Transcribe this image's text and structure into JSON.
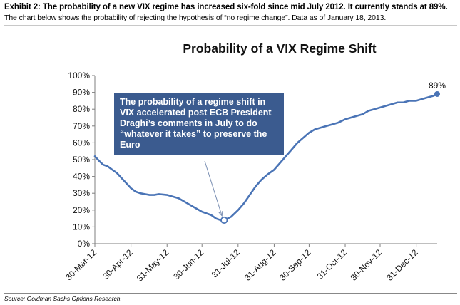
{
  "header": {
    "exhibit_title": "Exhibit 2: The probability of a new VIX regime has increased six-fold since mid July 2012. It currently stands at 89%.",
    "exhibit_subtitle": "The chart below shows the probability of rejecting the hypothesis of “no regime change”. Data as of January 18, 2013."
  },
  "footer": {
    "source": "Source: Goldman Sachs Options Research."
  },
  "annotation": {
    "text": "The probability of a regime shift in VIX accelerated post ECB President Draghi’s comments in July to do “whatever it takes” to preserve the Euro"
  },
  "colors": {
    "line": "#4a74b6",
    "annotation_bg": "#3b5b8f",
    "axis": "#7f7f7f"
  },
  "chart_data": {
    "type": "line",
    "title": "Probability of a VIX Regime Shift",
    "xlabel": "",
    "ylabel": "",
    "ylim": [
      0,
      100
    ],
    "y_ticks": [
      "0%",
      "10%",
      "20%",
      "30%",
      "40%",
      "50%",
      "60%",
      "70%",
      "80%",
      "90%",
      "100%"
    ],
    "x_tick_labels": [
      "30-Mar-12",
      "30-Apr-12",
      "31-May-12",
      "30-Jun-12",
      "31-Jul-12",
      "31-Aug-12",
      "30-Sep-12",
      "31-Oct-12",
      "30-Nov-12",
      "31-Dec-12"
    ],
    "x_range": [
      "2012-03-30",
      "2013-01-18"
    ],
    "grid": false,
    "legend": "none",
    "end_label": "89%",
    "series": [
      {
        "x": [
          "2012-03-30",
          "2012-04-03",
          "2012-04-06",
          "2012-04-10",
          "2012-04-14",
          "2012-04-18",
          "2012-04-22",
          "2012-04-26",
          "2012-04-30",
          "2012-05-04",
          "2012-05-08",
          "2012-05-12",
          "2012-05-16",
          "2012-05-20",
          "2012-05-24",
          "2012-05-31",
          "2012-06-05",
          "2012-06-10",
          "2012-06-15",
          "2012-06-20",
          "2012-06-25",
          "2012-06-30",
          "2012-07-04",
          "2012-07-08",
          "2012-07-12",
          "2012-07-16",
          "2012-07-19",
          "2012-07-22",
          "2012-07-25",
          "2012-07-31",
          "2012-08-05",
          "2012-08-10",
          "2012-08-15",
          "2012-08-20",
          "2012-08-25",
          "2012-08-31",
          "2012-09-05",
          "2012-09-10",
          "2012-09-15",
          "2012-09-20",
          "2012-09-25",
          "2012-09-30",
          "2012-10-05",
          "2012-10-10",
          "2012-10-15",
          "2012-10-20",
          "2012-10-25",
          "2012-10-31",
          "2012-11-05",
          "2012-11-10",
          "2012-11-15",
          "2012-11-20",
          "2012-11-25",
          "2012-11-30",
          "2012-12-05",
          "2012-12-10",
          "2012-12-15",
          "2012-12-20",
          "2012-12-25",
          "2012-12-31",
          "2013-01-05",
          "2013-01-10",
          "2013-01-15",
          "2013-01-18"
        ],
        "values": [
          52,
          49,
          47,
          46,
          44,
          42,
          39,
          36,
          33,
          31,
          30,
          29.5,
          29,
          29,
          29.5,
          29,
          28,
          27,
          25,
          23,
          21,
          19,
          18,
          17,
          15,
          14,
          14,
          15,
          16,
          20,
          24,
          29,
          34,
          38,
          41,
          44,
          48,
          52,
          56,
          60,
          63,
          66,
          68,
          69,
          70,
          71,
          72,
          74,
          75,
          76,
          77,
          79,
          80,
          81,
          82,
          83,
          84,
          84,
          85,
          85,
          86,
          87,
          88,
          89
        ],
        "highlight_point": {
          "x": "2012-07-19",
          "y": 14
        }
      }
    ]
  }
}
